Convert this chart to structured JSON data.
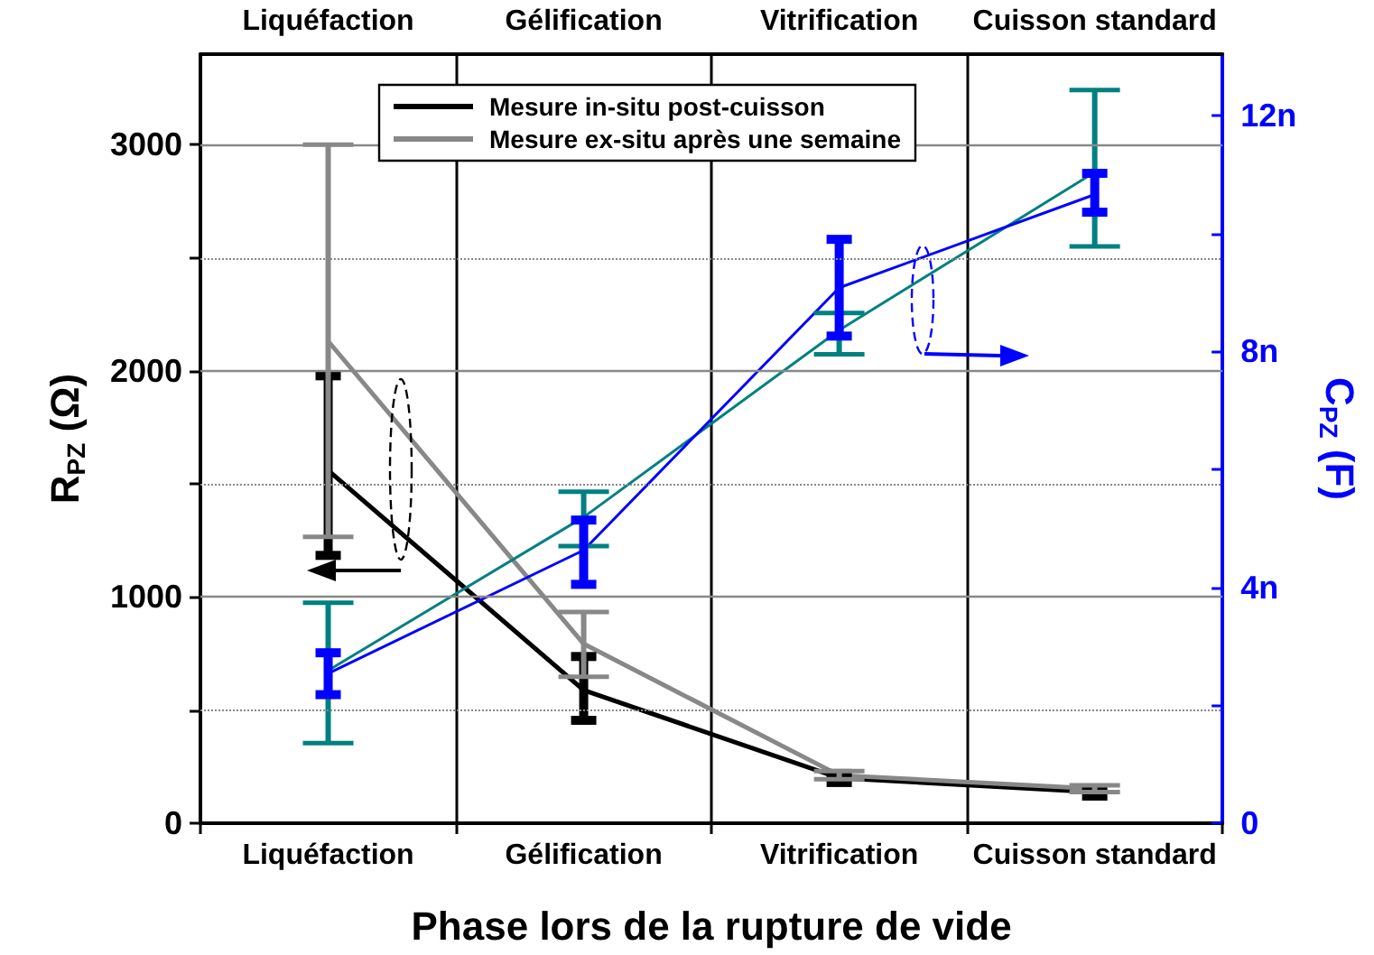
{
  "chart_data": {
    "type": "line",
    "categories": [
      "Liquéfaction",
      "Gélification",
      "Vitrification",
      "Cuisson standard"
    ],
    "xlabel": "Phase lors de la rupture de vide",
    "ylabel": "R$_{PZ}$ (Ω)",
    "y2label": "C$_{PZ}$ (F)",
    "ylim": [
      0,
      3400
    ],
    "yticks": [
      0,
      {
        "value": 500,
        "label": null
      },
      1000,
      {
        "value": 1500,
        "label": null
      },
      2000,
      {
        "value": 2500,
        "label": null
      },
      3000
    ],
    "y2lim": [
      0,
      13.04
    ],
    "y2ticks": [
      {
        "value": 0,
        "label": "0"
      },
      {
        "value": 2,
        "label": null
      },
      {
        "value": 4,
        "label": "4n"
      },
      {
        "value": 6,
        "label": null
      },
      {
        "value": 8,
        "label": "8n"
      },
      {
        "value": 10,
        "label": null
      },
      {
        "value": 12,
        "label": "12n"
      }
    ],
    "grid": true,
    "legend": "top",
    "marker": "none",
    "line_style": "solid",
    "series": [
      {
        "name": "Mesure in-situ post-cuisson",
        "color": "#000000",
        "values": [
          1560,
          588,
          200,
          138
        ],
        "errors": [
          [
            1184,
            1978
          ],
          [
            455,
            737
          ],
          [
            180,
            220
          ],
          [
            120,
            155
          ]
        ]
      },
      {
        "name": "Mesure ex-situ après une semaine",
        "color": "#888888",
        "values": [
          2131,
          793,
          212,
          153
        ],
        "errors": [
          [
            1266,
            3000
          ],
          [
            647,
            934
          ],
          [
            195,
            230
          ],
          [
            138,
            168
          ]
        ]
      },
      {
        "color": "#008080",
        "axis": "y2",
        "values": [
          2.59,
          5.19,
          8.36,
          11.04
        ],
        "errors": [
          [
            1.36,
            3.74
          ],
          [
            4.7,
            5.62
          ],
          [
            7.95,
            8.65
          ],
          [
            9.78,
            12.43
          ]
        ]
      },
      {
        "color": "#0000ff",
        "axis": "y2",
        "values": [
          2.54,
          4.63,
          9.08,
          10.66
        ],
        "errors": [
          [
            2.18,
            2.89
          ],
          [
            4.05,
            5.14
          ],
          [
            8.26,
            9.9
          ],
          [
            10.36,
            11.02
          ]
        ]
      }
    ]
  }
}
